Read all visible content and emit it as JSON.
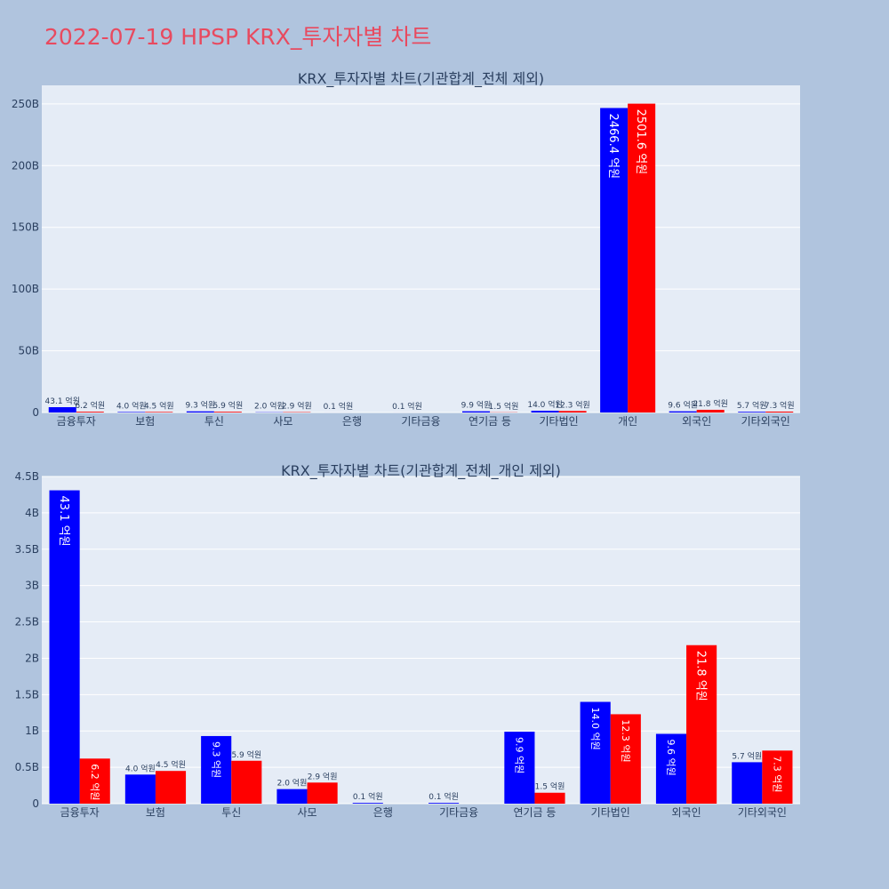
{
  "page": {
    "title": "2022-07-19 HPSP KRX_투자자별 차트"
  },
  "colors": {
    "buy": "#0000ff",
    "sell": "#ff0000",
    "plot_bg": "#e5ecf6",
    "paper_bg": "#b0c4de",
    "title": "#e84a5f"
  },
  "chart_data": [
    {
      "type": "bar",
      "title": "KRX_투자자별 차트(기관합계_전체 제외)",
      "categories": [
        "금융투자",
        "보험",
        "투신",
        "사모",
        "은행",
        "기타금융",
        "연기금 등",
        "기타법인",
        "개인",
        "외국인",
        "기타외국인"
      ],
      "ylim": [
        0,
        265
      ],
      "yticks": [
        0,
        50,
        100,
        150,
        200,
        250
      ],
      "ytick_labels": [
        "0",
        "50B",
        "100B",
        "150B",
        "200B",
        "250B"
      ],
      "series": [
        {
          "color": "#0000ff",
          "values": [
            4.31,
            0.4,
            0.93,
            0.2,
            0.01,
            0.01,
            0.99,
            1.4,
            246.64,
            0.96,
            0.57
          ],
          "labels": [
            "43.1 억원",
            "4.0 억원",
            "9.3 억원",
            "2.0 억원",
            "0.1 억원",
            "0.1 억원",
            "9.9 억원",
            "14.0 억원",
            "2466.4 억원",
            "9.6 억원",
            "5.7 억원"
          ]
        },
        {
          "color": "#ff0000",
          "values": [
            0.62,
            0.45,
            0.59,
            0.29,
            0,
            0,
            0.15,
            1.23,
            250.16,
            2.18,
            0.73
          ],
          "labels": [
            "6.2 억원",
            "4.5 억원",
            "5.9 억원",
            "2.9 억원",
            "",
            "",
            "1.5 억원",
            "12.3 억원",
            "2501.6 억원",
            "21.8 억원",
            "7.3 억원"
          ]
        }
      ]
    },
    {
      "type": "bar",
      "title": "KRX_투자자별 차트(기관합계_전체_개인 제외)",
      "categories": [
        "금융투자",
        "보험",
        "투신",
        "사모",
        "은행",
        "기타금융",
        "연기금 등",
        "기타법인",
        "외국인",
        "기타외국인"
      ],
      "ylim": [
        0,
        4.5
      ],
      "yticks": [
        0,
        0.5,
        1,
        1.5,
        2,
        2.5,
        3,
        3.5,
        4,
        4.5
      ],
      "ytick_labels": [
        "0",
        "0.5B",
        "1B",
        "1.5B",
        "2B",
        "2.5B",
        "3B",
        "3.5B",
        "4B",
        "4.5B"
      ],
      "series": [
        {
          "color": "#0000ff",
          "values": [
            4.31,
            0.4,
            0.93,
            0.2,
            0.01,
            0.01,
            0.99,
            1.4,
            0.96,
            0.57
          ],
          "labels": [
            "43.1 억원",
            "4.0 억원",
            "9.3 억원",
            "2.0 억원",
            "0.1 억원",
            "0.1 억원",
            "9.9 억원",
            "14.0 억원",
            "9.6 억원",
            "5.7 억원"
          ]
        },
        {
          "color": "#ff0000",
          "values": [
            0.62,
            0.45,
            0.59,
            0.29,
            0,
            0,
            0.15,
            1.23,
            2.18,
            0.73
          ],
          "labels": [
            "6.2 억원",
            "4.5 억원",
            "5.9 억원",
            "2.9 억원",
            "",
            "",
            "1.5 억원",
            "12.3 억원",
            "21.8 억원",
            "7.3 억원"
          ]
        }
      ]
    }
  ]
}
